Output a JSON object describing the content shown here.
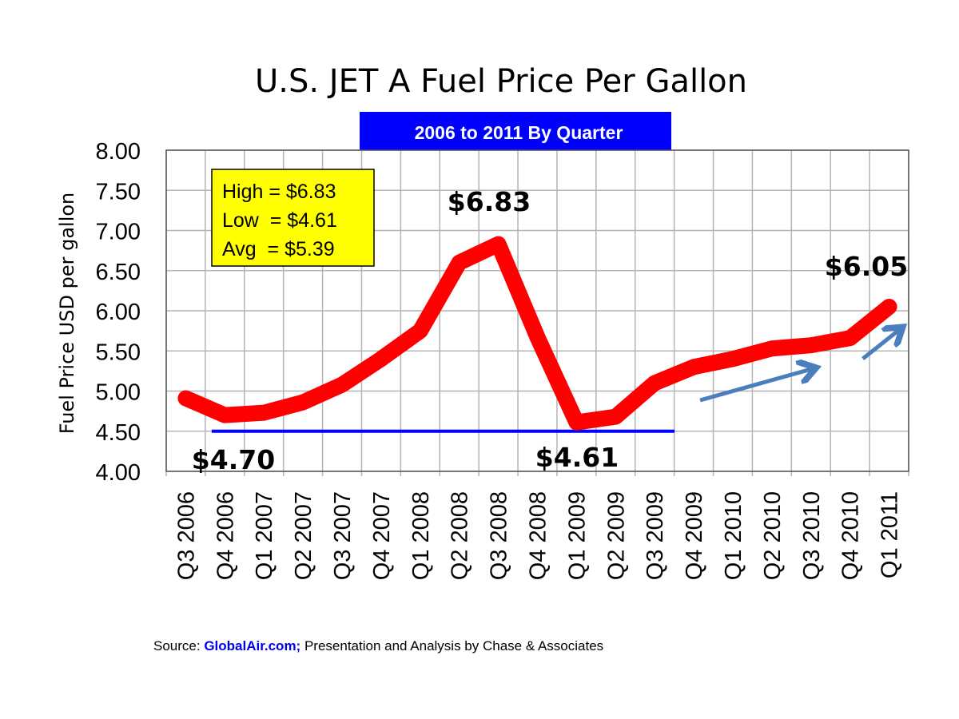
{
  "chart_data": {
    "type": "line",
    "title": "U.S. JET A Fuel Price Per Gallon",
    "subtitle": "2006 to 2011 By Quarter",
    "xlabel": "",
    "ylabel": "Fuel Price USD per gallon",
    "ylim": [
      4.0,
      8.0
    ],
    "yticks": [
      "8.00",
      "7.50",
      "7.00",
      "6.50",
      "6.00",
      "5.50",
      "5.00",
      "4.50",
      "4.00"
    ],
    "ytick_values": [
      8.0,
      7.5,
      7.0,
      6.5,
      6.0,
      5.5,
      5.0,
      4.5,
      4.0
    ],
    "grid": true,
    "categories": [
      "Q3 2006",
      "Q4 2006",
      "Q1 2007",
      "Q2 2007",
      "Q3 2007",
      "Q4 2007",
      "Q1 2008",
      "Q2 2008",
      "Q3 2008",
      "Q4 2008",
      "Q1 2009",
      "Q2 2009",
      "Q3 2009",
      "Q4 2009",
      "Q1 2010",
      "Q2 2010",
      "Q3 2010",
      "Q4 2010",
      "Q1 2011"
    ],
    "series": [
      {
        "name": "Jet A price per gallon",
        "color": "#ff0000",
        "values": [
          4.91,
          4.7,
          4.73,
          4.86,
          5.08,
          5.4,
          5.75,
          6.6,
          6.83,
          5.67,
          4.61,
          4.68,
          5.1,
          5.3,
          5.4,
          5.53,
          5.57,
          5.66,
          6.05
        ]
      }
    ],
    "reference_line": {
      "value": 4.5,
      "from_category": "Q4 2006",
      "to_category": "Q4 2009",
      "color": "#0000ff"
    },
    "stats_box": {
      "lines": [
        "High = $6.83",
        "Low  = $4.61",
        "Avg  = $5.39"
      ],
      "background": "#ffff00",
      "placement": "top-left"
    },
    "annotations": [
      {
        "text": "$6.83",
        "category": "Q3 2008",
        "position": "above"
      },
      {
        "text": "$4.70",
        "category": "Q4 2006",
        "position": "below"
      },
      {
        "text": "$4.61",
        "category": "Q1 2009",
        "position": "below"
      },
      {
        "text": "$6.05",
        "category": "Q1 2011",
        "position": "above"
      }
    ],
    "trend_arrows": {
      "color": "#4a7ebf",
      "items": [
        {
          "from_category": "Q4 2009",
          "to_category": "Q3 2010",
          "direction": "up-right"
        },
        {
          "from_category": "Q4 2010",
          "to_category": "Q1 2011",
          "direction": "up-right"
        }
      ]
    },
    "subtitle_background": "#0000ff"
  },
  "source": {
    "prefix": "Source: ",
    "link": "GlobalAir.com;",
    "suffix": " Presentation and Analysis by Chase & Associates"
  }
}
